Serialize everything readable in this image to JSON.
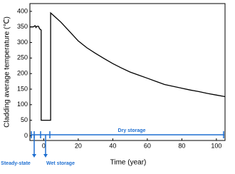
{
  "chart_data": {
    "type": "line",
    "ylabel": "Cladding average temperature (℃)",
    "xlabel": "Time (year)",
    "xlim": [
      -8,
      105
    ],
    "ylim": [
      -15,
      425
    ],
    "xticks": [
      0,
      20,
      40,
      60,
      80,
      100
    ],
    "yticks": [
      0,
      50,
      100,
      150,
      200,
      250,
      300,
      350,
      400
    ],
    "series": [
      {
        "color": "#000000",
        "x": [
          -8,
          -6,
          -5,
          -4.5,
          -4,
          -3,
          -2.5,
          -2,
          -1.5,
          -1.5,
          4,
          4,
          7,
          10,
          15,
          20,
          25,
          30,
          35,
          40,
          45,
          50,
          55,
          60,
          65,
          70,
          75,
          80,
          85,
          90,
          95,
          100,
          105
        ],
        "values": [
          350,
          350,
          354,
          348,
          352,
          352,
          345,
          342,
          340,
          50,
          50,
          395,
          380,
          365,
          335,
          305,
          283,
          265,
          248,
          232,
          218,
          205,
          195,
          185,
          175,
          165,
          159,
          153,
          147,
          142,
          136,
          131,
          126
        ]
      }
    ],
    "annotations": [
      "Dry storage",
      "Steady-state",
      "Wet storage"
    ],
    "annotation_color": "#1f6fd1"
  }
}
